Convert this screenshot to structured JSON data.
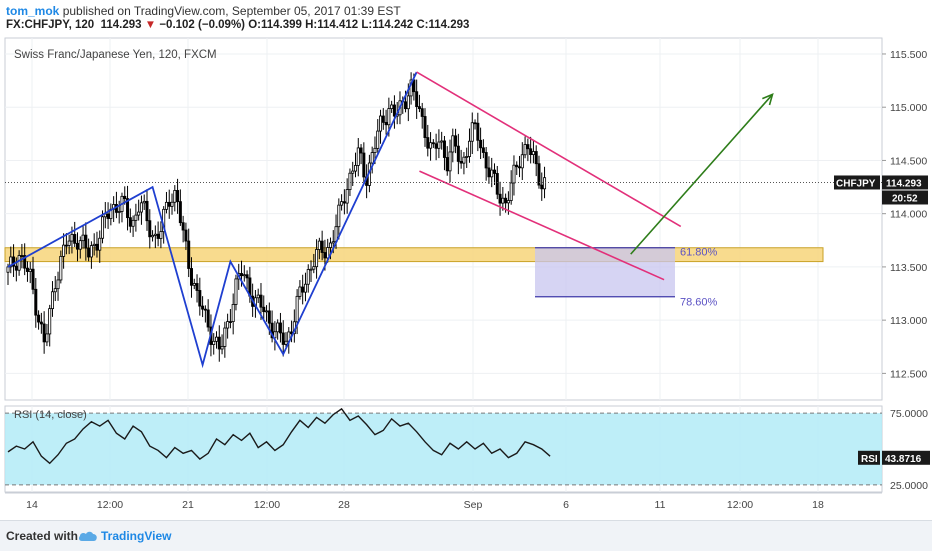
{
  "header": {
    "user": "tom_mok",
    "published": "published on TradingView.com, September 05, 2017 01:39 EST",
    "symbol": "FX:CHFJPY, 120",
    "last": "114.293",
    "change": "−0.102 (−0.09%)",
    "ohlc": "O:114.399 H:114.412 L:114.242 C:114.293"
  },
  "footer": {
    "created_with": "Created with",
    "brand": "TradingView"
  },
  "colors": {
    "up": "#ffffff",
    "down": "#000000",
    "wick": "#000000",
    "zone": "#f7d57a",
    "zone_border": "#c9a227",
    "pattern": "#1f3fd0",
    "channel": "#e2307a",
    "arrow": "#2e7d1a",
    "fib_box": "#c8c6ef",
    "fib_line": "#3f3aa8",
    "rsi_band": "#b3ebf7"
  },
  "chart_data": [
    {
      "type": "candlestick",
      "title": "Swiss Franc/Japanese Yen, 120, FXCM",
      "symbol_tag": "CHFJPY",
      "last_price": "114.293",
      "bar_timer": "20:52",
      "ylim": [
        112.25,
        115.65
      ],
      "yticks": [
        "115.500",
        "115.000",
        "114.500",
        "114.000",
        "113.500",
        "113.000",
        "112.500"
      ],
      "xticks": [
        "14",
        "12:00",
        "21",
        "12:00",
        "28",
        "Sep",
        "6",
        "11",
        "12:00",
        "18"
      ],
      "close_path": [
        [
          0,
          113.45
        ],
        [
          3,
          113.62
        ],
        [
          6,
          113.4
        ],
        [
          8,
          113.1
        ],
        [
          10,
          112.75
        ],
        [
          13,
          113.4
        ],
        [
          16,
          113.72
        ],
        [
          19,
          113.78
        ],
        [
          22,
          113.62
        ],
        [
          25,
          113.8
        ],
        [
          28,
          114.05
        ],
        [
          31,
          114.1
        ],
        [
          34,
          113.9
        ],
        [
          36,
          114.12
        ],
        [
          38,
          113.92
        ],
        [
          40,
          113.78
        ],
        [
          42,
          113.85
        ],
        [
          44,
          114.15
        ],
        [
          46,
          114.2
        ],
        [
          48,
          113.75
        ],
        [
          50,
          113.45
        ],
        [
          52,
          113.2
        ],
        [
          54,
          113.0
        ],
        [
          56,
          112.85
        ],
        [
          58,
          112.7
        ],
        [
          60,
          112.95
        ],
        [
          62,
          113.3
        ],
        [
          64,
          113.45
        ],
        [
          66,
          113.3
        ],
        [
          68,
          113.15
        ],
        [
          70,
          113.1
        ],
        [
          72,
          112.95
        ],
        [
          74,
          112.85
        ],
        [
          76,
          112.8
        ],
        [
          78,
          113.0
        ],
        [
          80,
          113.25
        ],
        [
          82,
          113.45
        ],
        [
          84,
          113.6
        ],
        [
          86,
          113.65
        ],
        [
          88,
          113.7
        ],
        [
          90,
          113.9
        ],
        [
          92,
          114.2
        ],
        [
          94,
          114.4
        ],
        [
          96,
          114.55
        ],
        [
          98,
          114.35
        ],
        [
          100,
          114.6
        ],
        [
          102,
          114.85
        ],
        [
          104,
          115.0
        ],
        [
          106,
          114.9
        ],
        [
          108,
          115.05
        ],
        [
          110,
          115.2
        ],
        [
          112,
          115.0
        ],
        [
          114,
          114.8
        ],
        [
          116,
          114.55
        ],
        [
          118,
          114.7
        ],
        [
          120,
          114.5
        ],
        [
          122,
          114.65
        ],
        [
          124,
          114.45
        ],
        [
          126,
          114.7
        ],
        [
          128,
          114.8
        ],
        [
          130,
          114.55
        ],
        [
          132,
          114.35
        ],
        [
          134,
          114.2
        ],
        [
          136,
          114.1
        ],
        [
          138,
          114.3
        ],
        [
          140,
          114.55
        ],
        [
          142,
          114.65
        ],
        [
          144,
          114.45
        ],
        [
          146,
          114.3
        ]
      ],
      "annotations": {
        "support_zone": {
          "from": 113.55,
          "to": 113.68
        },
        "fib_levels": [
          {
            "label": "61.80%",
            "value": 113.68
          },
          {
            "label": "78.60%",
            "value": 113.22
          }
        ],
        "pattern_points": [
          [
            0,
            113.5
          ],
          [
            52,
            114.25
          ],
          [
            70,
            112.58
          ],
          [
            80,
            113.55
          ],
          [
            99,
            112.68
          ],
          [
            147,
            115.33
          ]
        ],
        "channel_upper": [
          [
            147,
            115.33
          ],
          [
            242,
            113.88
          ]
        ],
        "channel_lower": [
          [
            148,
            114.4
          ],
          [
            236,
            113.38
          ]
        ],
        "projection_arrow": [
          [
            224,
            113.62
          ],
          [
            275,
            115.12
          ]
        ]
      }
    },
    {
      "type": "line",
      "title": "RSI (14, close)",
      "tag": "RSI",
      "last_value": "43.8716",
      "ylim": [
        20,
        80
      ],
      "yticks": [
        "75.0000",
        "25.0000"
      ],
      "band": [
        25,
        75
      ],
      "values": [
        [
          0,
          48
        ],
        [
          3,
          52
        ],
        [
          6,
          50
        ],
        [
          9,
          55
        ],
        [
          12,
          45
        ],
        [
          15,
          40
        ],
        [
          18,
          46
        ],
        [
          21,
          54
        ],
        [
          24,
          57
        ],
        [
          27,
          64
        ],
        [
          30,
          69
        ],
        [
          33,
          66
        ],
        [
          36,
          70
        ],
        [
          39,
          61
        ],
        [
          42,
          57
        ],
        [
          45,
          66
        ],
        [
          48,
          62
        ],
        [
          51,
          52
        ],
        [
          54,
          49
        ],
        [
          57,
          44
        ],
        [
          60,
          51
        ],
        [
          63,
          47
        ],
        [
          66,
          49
        ],
        [
          69,
          43
        ],
        [
          72,
          47
        ],
        [
          75,
          57
        ],
        [
          78,
          53
        ],
        [
          81,
          60
        ],
        [
          84,
          56
        ],
        [
          87,
          61
        ],
        [
          90,
          51
        ],
        [
          93,
          55
        ],
        [
          96,
          49
        ],
        [
          99,
          53
        ],
        [
          102,
          62
        ],
        [
          105,
          70
        ],
        [
          108,
          65
        ],
        [
          111,
          72
        ],
        [
          114,
          68
        ],
        [
          117,
          74
        ],
        [
          120,
          78
        ],
        [
          123,
          70
        ],
        [
          126,
          73
        ],
        [
          129,
          67
        ],
        [
          132,
          60
        ],
        [
          135,
          63
        ],
        [
          138,
          71
        ],
        [
          141,
          66
        ],
        [
          144,
          68
        ],
        [
          147,
          62
        ],
        [
          150,
          55
        ],
        [
          153,
          49
        ],
        [
          156,
          46
        ],
        [
          159,
          54
        ],
        [
          162,
          50
        ],
        [
          165,
          55
        ],
        [
          168,
          50
        ],
        [
          171,
          54
        ],
        [
          174,
          47
        ],
        [
          177,
          50
        ],
        [
          180,
          44
        ],
        [
          183,
          47
        ],
        [
          186,
          55
        ],
        [
          189,
          53
        ],
        [
          192,
          50
        ],
        [
          195,
          45
        ]
      ]
    }
  ]
}
